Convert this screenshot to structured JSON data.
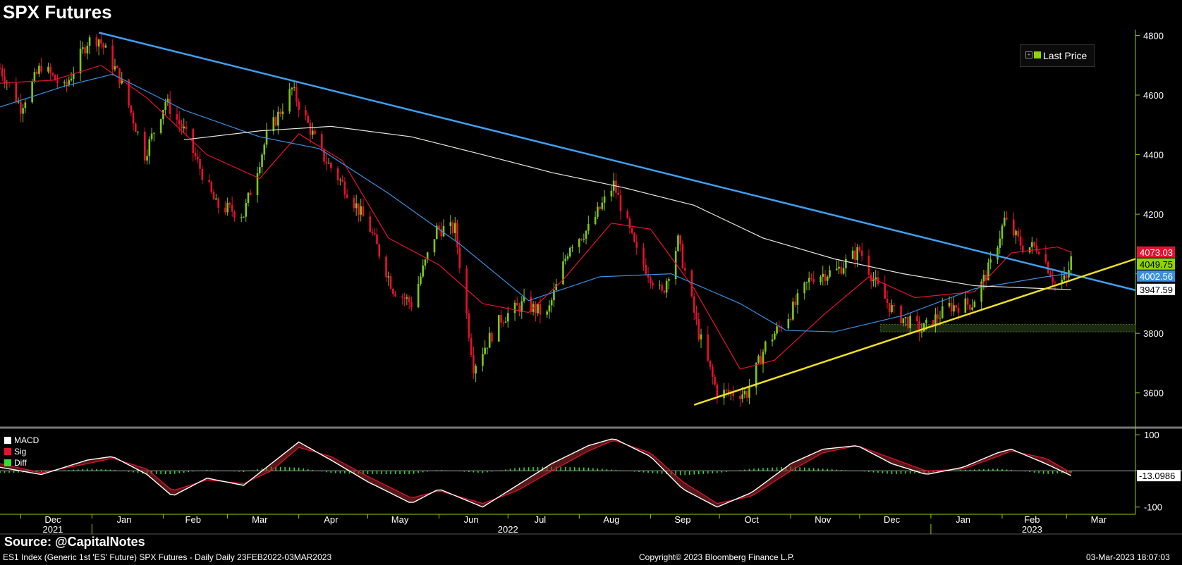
{
  "title": "SPX Futures",
  "source_label": "Source: @CapitalNotes",
  "footer": {
    "left": "ES1 Index (Generic 1st 'ES' Future) SPX Futures - Daily  Daily 23FEB2022-03MAR2023",
    "center": "Copyright© 2023 Bloomberg Finance L.P.",
    "right": "03-Mar-2023 18:07:03"
  },
  "legend": {
    "label": "Last Price",
    "color": "#8fd400"
  },
  "price_tags": [
    {
      "value": "4073.03",
      "bg": "#e8102e",
      "fg": "#ffffff"
    },
    {
      "value": "4049.75",
      "bg": "#8fd400",
      "fg": "#000000"
    },
    {
      "value": "4002.56",
      "bg": "#3a8fe0",
      "fg": "#ffffff"
    },
    {
      "value": "3947.59",
      "bg": "#ffffff",
      "fg": "#000000"
    }
  ],
  "macd_legend": [
    {
      "label": "MACD",
      "color": "#ffffff"
    },
    {
      "label": "Sig",
      "color": "#e8102e"
    },
    {
      "label": "Diff",
      "color": "#33dd33"
    }
  ],
  "macd_tag": {
    "value": "-13.0986",
    "bg": "#ffffff",
    "fg": "#000000"
  },
  "chart_data": {
    "type": "candlestick",
    "title": "SPX Futures",
    "y_ticks": [
      3600,
      3800,
      4000,
      4200,
      4400,
      4600,
      4800
    ],
    "y_tick_labels": [
      "3600",
      "3800",
      "4000",
      "4200",
      "4400",
      "4600",
      "4800"
    ],
    "ylim": [
      3500,
      4820
    ],
    "macd_ticks": [
      100,
      -100
    ],
    "macd_tick_labels": [
      "100",
      "-100"
    ],
    "macd_ylim": [
      -120,
      110
    ],
    "x_month_labels": [
      {
        "label": "Dec",
        "date": "2021-12-15"
      },
      {
        "label": "Jan",
        "date": "2022-01-15"
      },
      {
        "label": "Feb",
        "date": "2022-02-14"
      },
      {
        "label": "Mar",
        "date": "2022-03-15"
      },
      {
        "label": "Apr",
        "date": "2022-04-15"
      },
      {
        "label": "May",
        "date": "2022-05-15"
      },
      {
        "label": "Jun",
        "date": "2022-06-15"
      },
      {
        "label": "Jul",
        "date": "2022-07-15"
      },
      {
        "label": "Aug",
        "date": "2022-08-15"
      },
      {
        "label": "Sep",
        "date": "2022-09-15"
      },
      {
        "label": "Oct",
        "date": "2022-10-15"
      },
      {
        "label": "Nov",
        "date": "2022-11-15"
      },
      {
        "label": "Dec",
        "date": "2022-12-15"
      },
      {
        "label": "Jan",
        "date": "2023-01-15"
      },
      {
        "label": "Feb",
        "date": "2023-02-14"
      },
      {
        "label": "Mar",
        "date": "2023-03-15"
      }
    ],
    "x_year_labels": [
      {
        "label": "2021",
        "date": "2021-12-15"
      },
      {
        "label": "2022",
        "date": "2022-07-01"
      },
      {
        "label": "2023",
        "date": "2023-02-14"
      }
    ],
    "x_range": [
      "2021-11-22",
      "2023-03-31"
    ],
    "price_series": {
      "name": "Last Price",
      "dates": [
        "2021-11-22",
        "2021-12-01",
        "2021-12-10",
        "2021-12-20",
        "2021-12-30",
        "2022-01-04",
        "2022-01-13",
        "2022-01-24",
        "2022-02-02",
        "2022-02-10",
        "2022-02-24",
        "2022-03-08",
        "2022-03-18",
        "2022-03-29",
        "2022-04-11",
        "2022-04-22",
        "2022-05-02",
        "2022-05-12",
        "2022-05-20",
        "2022-05-31",
        "2022-06-08",
        "2022-06-16",
        "2022-06-28",
        "2022-07-08",
        "2022-07-18",
        "2022-07-28",
        "2022-08-05",
        "2022-08-16",
        "2022-08-26",
        "2022-09-06",
        "2022-09-13",
        "2022-09-22",
        "2022-09-30",
        "2022-10-13",
        "2022-10-21",
        "2022-11-01",
        "2022-11-10",
        "2022-11-21",
        "2022-12-01",
        "2022-12-09",
        "2022-12-16",
        "2022-12-28",
        "2023-01-09",
        "2023-01-19",
        "2023-01-27",
        "2023-02-02",
        "2023-02-10",
        "2023-02-17",
        "2023-02-24",
        "2023-03-01",
        "2023-03-03"
      ],
      "values": [
        4690,
        4560,
        4700,
        4620,
        4780,
        4790,
        4660,
        4400,
        4580,
        4480,
        4230,
        4200,
        4460,
        4620,
        4400,
        4280,
        4150,
        3950,
        3900,
        4150,
        4150,
        3690,
        3850,
        3900,
        3860,
        4100,
        4150,
        4300,
        4070,
        3930,
        4110,
        3800,
        3600,
        3600,
        3760,
        3870,
        3990,
        4010,
        4080,
        3950,
        3870,
        3810,
        3890,
        3900,
        4030,
        4180,
        4090,
        4090,
        3970,
        3980,
        4049
      ]
    },
    "ma_series": [
      {
        "name": "",
        "color": "#e8102e",
        "dates": [
          "2021-11-22",
          "2021-12-15",
          "2022-01-05",
          "2022-01-25",
          "2022-02-20",
          "2022-03-15",
          "2022-04-01",
          "2022-04-20",
          "2022-05-10",
          "2022-06-01",
          "2022-06-20",
          "2022-07-10",
          "2022-07-25",
          "2022-08-15",
          "2022-09-01",
          "2022-09-20",
          "2022-10-10",
          "2022-10-25",
          "2022-11-15",
          "2022-12-05",
          "2022-12-25",
          "2023-01-20",
          "2023-02-05",
          "2023-02-25",
          "2023-03-03"
        ],
        "values": [
          4640,
          4650,
          4700,
          4590,
          4400,
          4320,
          4470,
          4380,
          4120,
          4030,
          3900,
          3870,
          3980,
          4170,
          4150,
          3950,
          3680,
          3710,
          3860,
          3990,
          3920,
          3940,
          4070,
          4090,
          4073
        ]
      },
      {
        "name": "",
        "color": "#3a8fe0",
        "dates": [
          "2021-11-22",
          "2021-12-20",
          "2022-01-10",
          "2022-02-10",
          "2022-03-15",
          "2022-04-10",
          "2022-05-10",
          "2022-06-10",
          "2022-07-10",
          "2022-08-10",
          "2022-09-10",
          "2022-10-10",
          "2022-10-30",
          "2022-11-20",
          "2022-12-20",
          "2023-01-20",
          "2023-02-20",
          "2023-03-03"
        ],
        "values": [
          4560,
          4630,
          4670,
          4550,
          4460,
          4420,
          4270,
          4100,
          3910,
          3990,
          4000,
          3900,
          3810,
          3805,
          3860,
          3950,
          3990,
          4002
        ]
      },
      {
        "name": "",
        "color": "#e8e8e0",
        "dates": [
          "2022-02-10",
          "2022-03-15",
          "2022-04-15",
          "2022-05-20",
          "2022-06-20",
          "2022-07-20",
          "2022-08-20",
          "2022-09-20",
          "2022-10-20",
          "2022-11-20",
          "2022-12-20",
          "2023-01-20",
          "2023-02-20",
          "2023-03-03"
        ],
        "values": [
          4450,
          4480,
          4495,
          4460,
          4400,
          4340,
          4290,
          4230,
          4120,
          4050,
          4000,
          3960,
          3950,
          3947
        ]
      }
    ],
    "trendlines": [
      {
        "name": "",
        "color": "#3fa0f0",
        "from": [
          "2022-01-04",
          4810
        ],
        "to": [
          "2023-03-31",
          3945
        ]
      },
      {
        "name": "",
        "color": "#f0e020",
        "from": [
          "2022-09-20",
          3560
        ],
        "to": [
          "2023-03-31",
          4050
        ]
      }
    ],
    "support_zone": {
      "from": "2022-12-10",
      "to": "2023-03-31",
      "low": 3805,
      "high": 3830
    },
    "macd": {
      "dates": [
        "2021-11-22",
        "2021-12-10",
        "2021-12-30",
        "2022-01-10",
        "2022-01-25",
        "2022-02-05",
        "2022-02-20",
        "2022-03-08",
        "2022-03-20",
        "2022-04-01",
        "2022-04-15",
        "2022-05-01",
        "2022-05-20",
        "2022-06-01",
        "2022-06-20",
        "2022-07-05",
        "2022-07-20",
        "2022-08-05",
        "2022-08-16",
        "2022-09-01",
        "2022-09-15",
        "2022-09-30",
        "2022-10-15",
        "2022-11-01",
        "2022-11-15",
        "2022-11-30",
        "2022-12-15",
        "2022-12-30",
        "2023-01-15",
        "2023-01-30",
        "2023-02-05",
        "2023-02-20",
        "2023-03-03"
      ],
      "macd": [
        10,
        -10,
        30,
        40,
        -10,
        -70,
        -20,
        -40,
        20,
        80,
        30,
        -30,
        -90,
        -50,
        -100,
        -40,
        20,
        70,
        90,
        40,
        -50,
        -100,
        -60,
        20,
        60,
        70,
        20,
        -10,
        10,
        50,
        60,
        20,
        -13
      ],
      "signal": [
        20,
        -5,
        20,
        35,
        5,
        -55,
        -25,
        -35,
        0,
        65,
        40,
        -15,
        -75,
        -55,
        -90,
        -55,
        0,
        55,
        85,
        50,
        -30,
        -90,
        -70,
        0,
        50,
        70,
        35,
        0,
        5,
        40,
        55,
        35,
        -5
      ]
    }
  }
}
